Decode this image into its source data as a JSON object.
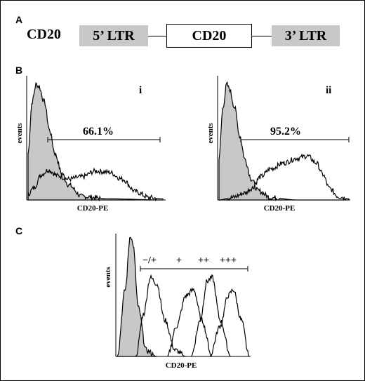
{
  "panel_a": {
    "label": "A",
    "gene": "CD20",
    "ltr5": "5’ LTR",
    "insert": "CD20",
    "ltr3": "3’ LTR"
  },
  "panel_b": {
    "label": "B",
    "plots": [
      {
        "id": "i",
        "ylabel": "events",
        "xlabel": "CD20-PE",
        "gate_percent": "66.1%"
      },
      {
        "id": "ii",
        "ylabel": "events",
        "xlabel": "CD20-PE",
        "gate_percent": "95.2%"
      }
    ]
  },
  "panel_c": {
    "label": "C",
    "ylabel": "events",
    "xlabel": "CD20-PE",
    "gate_labels": [
      "−/+",
      "+",
      "++",
      "+++"
    ]
  },
  "colors": {
    "control_fill": "#c8c8c8",
    "line": "#000000"
  },
  "chart_data": [
    {
      "type": "area",
      "panel": "B-i",
      "xlabel": "CD20-PE",
      "ylabel": "events",
      "series": [
        {
          "x": [
            0,
            3,
            6,
            8,
            12,
            16,
            20,
            25,
            30,
            40,
            60,
            100
          ],
          "y": [
            0.4,
            0.85,
            1.0,
            0.98,
            0.85,
            0.6,
            0.4,
            0.23,
            0.13,
            0.03,
            0.01,
            0.0
          ]
        },
        {
          "x": [
            0,
            4,
            10,
            15,
            22,
            30,
            40,
            50,
            60,
            70,
            80,
            90,
            100
          ],
          "y": [
            0.05,
            0.1,
            0.22,
            0.26,
            0.21,
            0.18,
            0.2,
            0.25,
            0.24,
            0.18,
            0.07,
            0.02,
            0.01
          ]
        }
      ],
      "gate": {
        "range": [
          15,
          100
        ],
        "percent": "66.1%"
      }
    },
    {
      "type": "area",
      "panel": "B-ii",
      "xlabel": "CD20-PE",
      "ylabel": "events",
      "series": [
        {
          "x": [
            0,
            3,
            6,
            8,
            12,
            16,
            20,
            25,
            30,
            40,
            60,
            100
          ],
          "y": [
            0.35,
            0.8,
            1.0,
            0.96,
            0.8,
            0.55,
            0.35,
            0.18,
            0.08,
            0.02,
            0.0,
            0.0
          ]
        },
        {
          "x": [
            0,
            10,
            20,
            25,
            32,
            40,
            50,
            60,
            68,
            75,
            80,
            85,
            92,
            100
          ],
          "y": [
            0.0,
            0.02,
            0.06,
            0.1,
            0.2,
            0.27,
            0.32,
            0.36,
            0.38,
            0.32,
            0.22,
            0.1,
            0.03,
            0.01
          ]
        }
      ],
      "gate": {
        "range": [
          15,
          100
        ],
        "percent": "95.2%"
      }
    },
    {
      "type": "area",
      "panel": "C",
      "xlabel": "CD20-PE",
      "ylabel": "events",
      "series": [
        {
          "x": [
            0,
            6,
            10,
            12,
            16,
            22,
            30
          ],
          "y": [
            0,
            0.55,
            1.0,
            0.92,
            0.4,
            0.05,
            0
          ]
        },
        {
          "x": [
            14,
            20,
            25,
            30,
            36,
            44,
            52
          ],
          "y": [
            0,
            0.35,
            0.65,
            0.6,
            0.3,
            0.05,
            0
          ]
        },
        {
          "x": [
            38,
            45,
            52,
            58,
            64,
            72
          ],
          "y": [
            0,
            0.25,
            0.5,
            0.55,
            0.3,
            0
          ]
        },
        {
          "x": [
            56,
            63,
            68,
            72,
            78,
            86
          ],
          "y": [
            0,
            0.3,
            0.62,
            0.65,
            0.3,
            0
          ]
        },
        {
          "x": [
            70,
            78,
            84,
            88,
            94,
            100
          ],
          "y": [
            0,
            0.25,
            0.5,
            0.55,
            0.3,
            0
          ]
        }
      ],
      "gate": {
        "range": [
          18,
          96
        ],
        "labels": [
          "−/+",
          "+",
          "++",
          "+++"
        ]
      }
    }
  ]
}
